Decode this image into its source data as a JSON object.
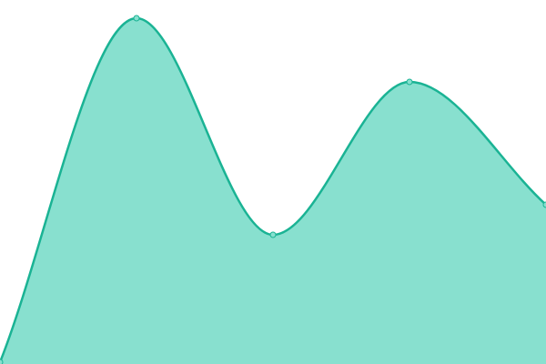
{
  "chart_data": {
    "type": "area",
    "categories": [
      null,
      null,
      null,
      null,
      null
    ],
    "values": [
      2,
      380,
      142,
      310,
      175
    ],
    "ylim": [
      0,
      400
    ],
    "color": "#1ab394",
    "fill": "#88e0cf"
  }
}
